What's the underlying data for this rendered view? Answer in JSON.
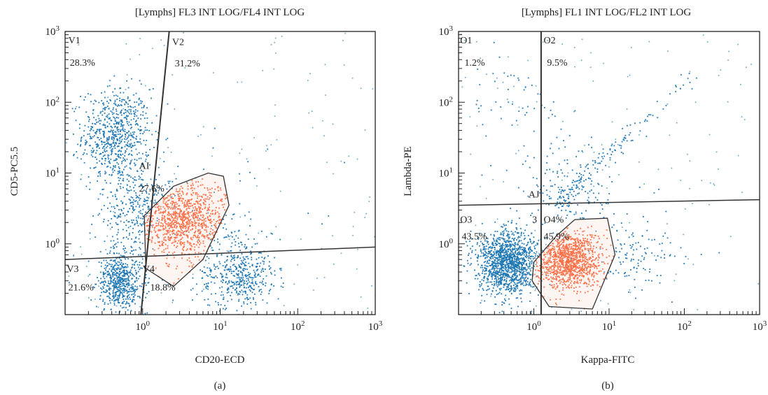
{
  "colors": {
    "blue": "#1f78b4",
    "red": "#ff4d1a",
    "axis": "#222222",
    "gate_fill": "#f5d6cd"
  },
  "chart_data": [
    {
      "type": "scatter",
      "panel_label": "(a)",
      "title": "[Lymphs] FL3 INT LOG/FL4 INT LOG",
      "xlabel": "CD20-ECD",
      "ylabel": "CD5-PC5.5",
      "xscale": "log",
      "yscale": "log",
      "xlim": [
        0.1,
        1000
      ],
      "ylim": [
        0.1,
        1000
      ],
      "x_ticks": [
        {
          "v": 1,
          "exp": "0"
        },
        {
          "v": 10,
          "exp": "1"
        },
        {
          "v": 100,
          "exp": "2"
        },
        {
          "v": 1000,
          "exp": "3"
        }
      ],
      "y_ticks": [
        {
          "v": 1,
          "exp": "0"
        },
        {
          "v": 10,
          "exp": "1"
        },
        {
          "v": 100,
          "exp": "2"
        },
        {
          "v": 1000,
          "exp": "3"
        }
      ],
      "tick_base": "10",
      "quadrant_lines": [
        {
          "from": [
            0.1,
            0.6
          ],
          "to": [
            1000,
            0.9
          ]
        },
        {
          "from": [
            0.95,
            0.1
          ],
          "to": [
            2.2,
            1000
          ]
        }
      ],
      "quadrants": [
        {
          "name": "V1",
          "pct": "28.3%",
          "name_at": [
            0.11,
            680
          ],
          "pct_at": [
            0.115,
            330
          ]
        },
        {
          "name": "V2",
          "pct": "31.2%",
          "name_at": [
            2.4,
            640
          ],
          "pct_at": [
            2.6,
            320
          ]
        },
        {
          "name": "V3",
          "pct": "21.6%",
          "name_at": [
            0.105,
            0.4
          ],
          "pct_at": [
            0.11,
            0.22
          ]
        },
        {
          "name": "V4",
          "pct": "18.8%",
          "name_at": [
            1.0,
            0.4
          ],
          "pct_at": [
            1.25,
            0.22
          ]
        }
      ],
      "gate": {
        "name": "AI",
        "pct": "27.6%",
        "name_at": [
          0.9,
          11.5
        ],
        "pct_at": [
          0.9,
          5.5
        ],
        "polygon": [
          [
            1.1,
            0.45
          ],
          [
            1.05,
            2.5
          ],
          [
            2.5,
            6.5
          ],
          [
            7,
            10
          ],
          [
            11,
            9
          ],
          [
            13,
            3.5
          ],
          [
            6,
            0.6
          ],
          [
            2.5,
            0.25
          ]
        ]
      },
      "populations": [
        {
          "color": "blue",
          "n": 700,
          "cx": 0.45,
          "cy": 35,
          "sx": 0.22,
          "sy": 0.33
        },
        {
          "color": "blue",
          "n": 300,
          "cx": 0.8,
          "cy": 3,
          "sx": 0.25,
          "sy": 0.35
        },
        {
          "color": "blue",
          "n": 550,
          "cx": 0.5,
          "cy": 0.3,
          "sx": 0.14,
          "sy": 0.2
        },
        {
          "color": "blue",
          "n": 400,
          "cx": 18,
          "cy": 0.35,
          "sx": 0.22,
          "sy": 0.22
        },
        {
          "color": "blue",
          "n": 180,
          "cx": 4,
          "cy": 1.5,
          "sx": 0.55,
          "sy": 0.45
        },
        {
          "color": "red",
          "n": 900,
          "cx": 3.2,
          "cy": 2.2,
          "sx": 0.3,
          "sy": 0.3,
          "clip_to_gate": true
        }
      ]
    },
    {
      "type": "scatter",
      "panel_label": "(b)",
      "title": "[Lymphs] FL1 INT LOG/FL2 INT LOG",
      "xlabel": "Kappa-FITC",
      "ylabel": "Lambda-PE",
      "xscale": "log",
      "yscale": "log",
      "xlim": [
        0.1,
        1000
      ],
      "ylim": [
        0.1,
        1000
      ],
      "x_ticks": [
        {
          "v": 1,
          "exp": "0"
        },
        {
          "v": 10,
          "exp": "1"
        },
        {
          "v": 100,
          "exp": "2"
        },
        {
          "v": 1000,
          "exp": "3"
        }
      ],
      "y_ticks": [
        {
          "v": 1,
          "exp": "0"
        },
        {
          "v": 10,
          "exp": "1"
        },
        {
          "v": 100,
          "exp": "2"
        },
        {
          "v": 1000,
          "exp": "3"
        }
      ],
      "tick_base": "10",
      "quadrant_lines": [
        {
          "from": [
            0.1,
            3.5
          ],
          "to": [
            1000,
            4.2
          ]
        },
        {
          "from": [
            1.25,
            0.1
          ],
          "to": [
            1.25,
            1000
          ]
        }
      ],
      "quadrants": [
        {
          "name": "O1",
          "pct": "1.2%",
          "name_at": [
            0.105,
            680
          ],
          "pct_at": [
            0.12,
            330
          ]
        },
        {
          "name": "O2",
          "pct": "9.5%",
          "name_at": [
            1.35,
            680
          ],
          "pct_at": [
            1.5,
            330
          ]
        },
        {
          "name": "O3",
          "pct": "43.5%",
          "name_at": [
            0.105,
            2.0
          ],
          "pct_at": [
            0.11,
            1.15
          ]
        },
        {
          "name": "O4%",
          "pct": "45.9%",
          "name_at": [
            1.35,
            2.0
          ],
          "pct_at": [
            1.35,
            1.15
          ]
        }
      ],
      "gate": {
        "name": "AJ",
        "pct": "3",
        "name_at": [
          0.85,
          4.5
        ],
        "pct_at": [
          0.95,
          2.0
        ],
        "polygon": [
          [
            1.0,
            0.55
          ],
          [
            2.0,
            1.3
          ],
          [
            3.5,
            2.2
          ],
          [
            9.5,
            2.3
          ],
          [
            12,
            0.7
          ],
          [
            6,
            0.12
          ],
          [
            1.6,
            0.13
          ],
          [
            0.95,
            0.3
          ]
        ]
      },
      "populations": [
        {
          "color": "blue",
          "n": 1300,
          "cx": 0.45,
          "cy": 0.55,
          "sx": 0.2,
          "sy": 0.22
        },
        {
          "color": "red",
          "n": 1100,
          "cx": 2.8,
          "cy": 0.6,
          "sx": 0.22,
          "sy": 0.2,
          "clip_to_gate": true
        },
        {
          "color": "blue",
          "n": 160,
          "cx": 3,
          "cy": 6,
          "sx": 0.35,
          "sy": 0.35
        },
        {
          "color": "blue",
          "n": 120,
          "cx": 20,
          "cy": 0.8,
          "sx": 0.35,
          "sy": 0.25
        },
        {
          "color": "blue",
          "n": 60,
          "cx": 0.6,
          "cy": 60,
          "sx": 0.35,
          "sy": 0.5
        }
      ],
      "diagonal_population": {
        "color": "blue",
        "n": 140,
        "from": [
          2.2,
          4
        ],
        "to": [
          120,
          240
        ]
      }
    }
  ]
}
